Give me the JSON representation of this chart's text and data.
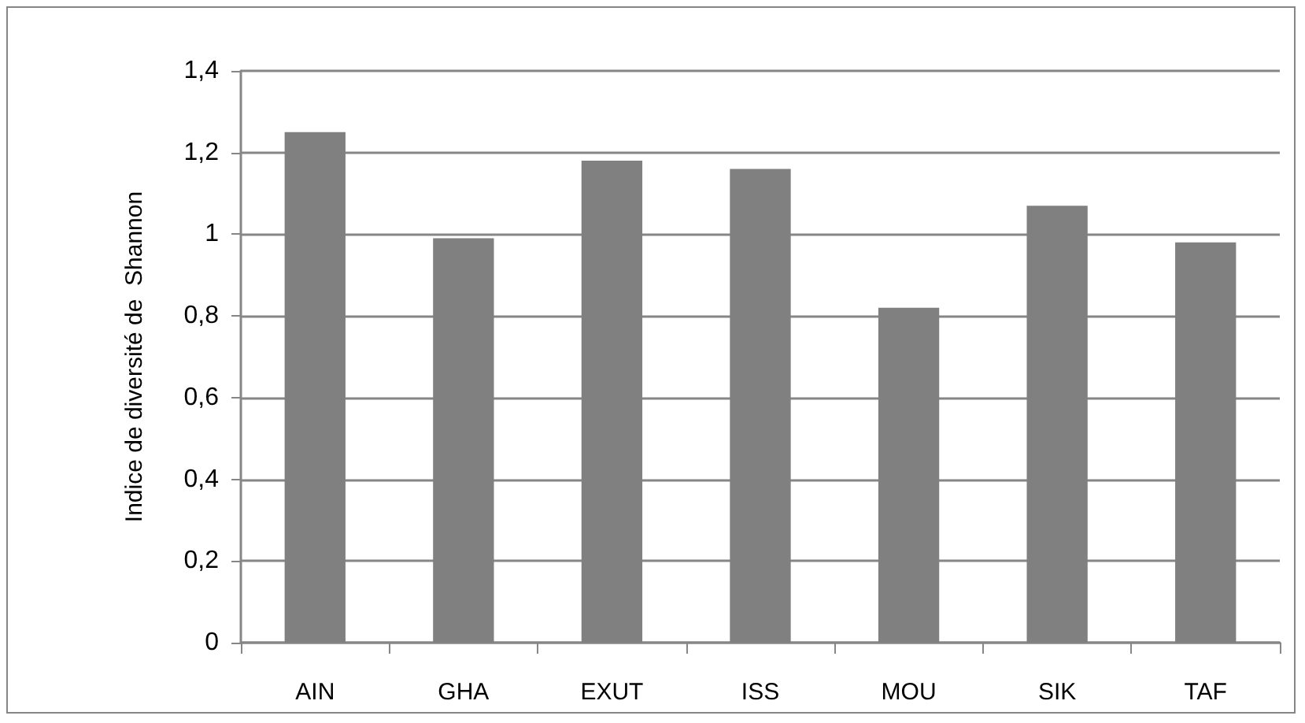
{
  "chart_data": {
    "type": "bar",
    "ylabel": "Indice de diversité de  Shannon",
    "categories": [
      "AIN",
      "GHA",
      "EXUT",
      "ISS",
      "MOU",
      "SIK",
      "TAF"
    ],
    "values": [
      1.25,
      0.99,
      1.18,
      1.16,
      0.82,
      1.07,
      0.98
    ],
    "color": "#808080",
    "ylim": [
      0,
      1.4
    ],
    "yticks": [
      {
        "value": 0,
        "label": "0"
      },
      {
        "value": 0.2,
        "label": "0,2"
      },
      {
        "value": 0.4,
        "label": "0,4"
      },
      {
        "value": 0.6,
        "label": "0,6"
      },
      {
        "value": 0.8,
        "label": "0,8"
      },
      {
        "value": 1,
        "label": "1"
      },
      {
        "value": 1.2,
        "label": "1,2"
      },
      {
        "value": 1.4,
        "label": "1,4"
      }
    ],
    "grid": "y"
  }
}
